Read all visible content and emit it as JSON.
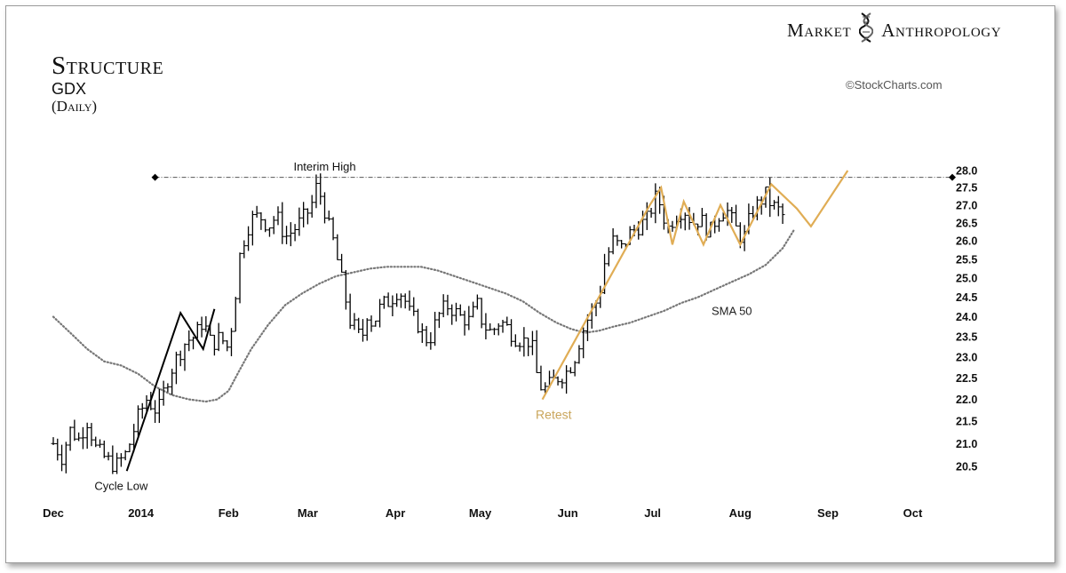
{
  "brand": {
    "left_word": "Market",
    "right_word": "Anthropology",
    "logo_icon": "dna-helix-icon"
  },
  "copyright": "©StockCharts.com",
  "chart_data": {
    "type": "bar",
    "title": "Structure",
    "symbol": "GDX",
    "period": "(Daily)",
    "y_scale": "log",
    "ylim": [
      20.1,
      28.1
    ],
    "y_ticks": [
      28.0,
      27.5,
      27.0,
      26.5,
      26.0,
      25.5,
      25.0,
      24.5,
      24.0,
      23.5,
      23.0,
      22.5,
      22.0,
      21.5,
      21.0,
      20.5
    ],
    "y_tick_labels": [
      "28.0",
      "27.5",
      "27.0",
      "26.5",
      "26.0",
      "25.5",
      "25.0",
      "24.5",
      "24.0",
      "23.5",
      "23.0",
      "22.5",
      "22.0",
      "21.5",
      "21.0",
      "20.5"
    ],
    "x_range_days": [
      0,
      318
    ],
    "x_ticks": [
      {
        "label": "Dec",
        "day": 0
      },
      {
        "label": "2014",
        "day": 31
      },
      {
        "label": "Feb",
        "day": 62
      },
      {
        "label": "Mar",
        "day": 90
      },
      {
        "label": "Apr",
        "day": 121
      },
      {
        "label": "May",
        "day": 151
      },
      {
        "label": "Jun",
        "day": 182
      },
      {
        "label": "Jul",
        "day": 212
      },
      {
        "label": "Aug",
        "day": 243
      },
      {
        "label": "Sep",
        "day": 274
      },
      {
        "label": "Oct",
        "day": 304
      }
    ],
    "close_path": [
      [
        0,
        21.0
      ],
      [
        3,
        20.7
      ],
      [
        6,
        21.3
      ],
      [
        9,
        21.1
      ],
      [
        12,
        21.5
      ],
      [
        15,
        20.9
      ],
      [
        18,
        20.7
      ],
      [
        22,
        20.5
      ],
      [
        26,
        20.8
      ],
      [
        30,
        21.6
      ],
      [
        33,
        22.0
      ],
      [
        37,
        21.7
      ],
      [
        40,
        22.4
      ],
      [
        43,
        22.9
      ],
      [
        47,
        23.4
      ],
      [
        50,
        23.5
      ],
      [
        53,
        23.9
      ],
      [
        56,
        23.3
      ],
      [
        59,
        23.5
      ],
      [
        62,
        23.2
      ],
      [
        64,
        24.3
      ],
      [
        66,
        25.6
      ],
      [
        68,
        26.2
      ],
      [
        70,
        26.6
      ],
      [
        73,
        26.7
      ],
      [
        76,
        26.4
      ],
      [
        79,
        26.7
      ],
      [
        82,
        26.1
      ],
      [
        85,
        26.3
      ],
      [
        88,
        26.6
      ],
      [
        91,
        26.9
      ],
      [
        93,
        27.5
      ],
      [
        95,
        27.2
      ],
      [
        97,
        26.5
      ],
      [
        99,
        26.0
      ],
      [
        101,
        25.3
      ],
      [
        103,
        24.6
      ],
      [
        105,
        23.9
      ],
      [
        107,
        23.7
      ],
      [
        109,
        23.4
      ],
      [
        111,
        24.1
      ],
      [
        113,
        23.8
      ],
      [
        116,
        24.3
      ],
      [
        119,
        24.4
      ],
      [
        122,
        24.7
      ],
      [
        124,
        24.5
      ],
      [
        126,
        24.1
      ],
      [
        129,
        23.8
      ],
      [
        131,
        23.5
      ],
      [
        133,
        23.4
      ],
      [
        136,
        24.0
      ],
      [
        139,
        24.3
      ],
      [
        141,
        24.2
      ],
      [
        144,
        24.0
      ],
      [
        147,
        23.9
      ],
      [
        150,
        24.3
      ],
      [
        152,
        23.8
      ],
      [
        155,
        23.6
      ],
      [
        158,
        23.9
      ],
      [
        161,
        23.7
      ],
      [
        163,
        23.5
      ],
      [
        166,
        23.4
      ],
      [
        169,
        23.4
      ],
      [
        171,
        22.6
      ],
      [
        173,
        22.2
      ],
      [
        175,
        22.3
      ],
      [
        178,
        22.5
      ],
      [
        181,
        22.6
      ],
      [
        184,
        22.9
      ],
      [
        187,
        23.6
      ],
      [
        190,
        24.1
      ],
      [
        193,
        24.5
      ],
      [
        195,
        25.4
      ],
      [
        198,
        26.0
      ],
      [
        201,
        25.8
      ],
      [
        204,
        26.2
      ],
      [
        207,
        26.4
      ],
      [
        210,
        26.6
      ],
      [
        213,
        27.2
      ],
      [
        215,
        27.0
      ],
      [
        217,
        26.3
      ],
      [
        220,
        26.7
      ],
      [
        223,
        26.9
      ],
      [
        226,
        26.5
      ],
      [
        229,
        26.6
      ],
      [
        232,
        26.2
      ],
      [
        235,
        26.7
      ],
      [
        238,
        26.9
      ],
      [
        241,
        26.4
      ],
      [
        244,
        26.0
      ],
      [
        247,
        26.8
      ],
      [
        250,
        27.1
      ],
      [
        252,
        27.3
      ],
      [
        254,
        27.0
      ],
      [
        256,
        26.9
      ],
      [
        258,
        26.7
      ]
    ],
    "sma_50": [
      [
        0,
        24.0
      ],
      [
        6,
        23.6
      ],
      [
        12,
        23.2
      ],
      [
        18,
        22.9
      ],
      [
        24,
        22.8
      ],
      [
        30,
        22.6
      ],
      [
        36,
        22.3
      ],
      [
        42,
        22.1
      ],
      [
        48,
        22.0
      ],
      [
        54,
        21.95
      ],
      [
        58,
        22.0
      ],
      [
        62,
        22.2
      ],
      [
        66,
        22.7
      ],
      [
        70,
        23.2
      ],
      [
        76,
        23.8
      ],
      [
        82,
        24.3
      ],
      [
        88,
        24.6
      ],
      [
        94,
        24.85
      ],
      [
        100,
        25.05
      ],
      [
        106,
        25.15
      ],
      [
        112,
        25.25
      ],
      [
        118,
        25.3
      ],
      [
        124,
        25.3
      ],
      [
        130,
        25.3
      ],
      [
        136,
        25.2
      ],
      [
        142,
        25.05
      ],
      [
        148,
        24.9
      ],
      [
        154,
        24.75
      ],
      [
        160,
        24.6
      ],
      [
        166,
        24.4
      ],
      [
        172,
        24.1
      ],
      [
        178,
        23.85
      ],
      [
        183,
        23.7
      ],
      [
        188,
        23.6
      ],
      [
        193,
        23.65
      ],
      [
        198,
        23.75
      ],
      [
        204,
        23.85
      ],
      [
        210,
        24.0
      ],
      [
        216,
        24.15
      ],
      [
        222,
        24.35
      ],
      [
        228,
        24.5
      ],
      [
        234,
        24.7
      ],
      [
        240,
        24.9
      ],
      [
        246,
        25.1
      ],
      [
        252,
        25.35
      ],
      [
        258,
        25.8
      ],
      [
        262,
        26.3
      ]
    ],
    "sma_label": "SMA 50",
    "interim_high_level": 27.8,
    "interim_high_span_days": [
      36,
      318
    ],
    "black_zigzag": [
      [
        26,
        20.4
      ],
      [
        45,
        24.1
      ],
      [
        53,
        23.2
      ],
      [
        57,
        24.2
      ]
    ],
    "gold_path": [
      [
        173,
        22.0
      ],
      [
        211,
        27.0
      ],
      [
        215,
        27.5
      ],
      [
        219,
        25.9
      ],
      [
        223,
        27.1
      ],
      [
        230,
        25.9
      ],
      [
        236,
        27.0
      ],
      [
        243,
        25.9
      ],
      [
        254,
        27.6
      ],
      [
        263,
        26.9
      ],
      [
        268,
        26.4
      ],
      [
        281,
        28.0
      ]
    ],
    "annotations": [
      {
        "text": "Interim High",
        "day": 96,
        "value": 28.0,
        "color": "#111111"
      },
      {
        "text": "Cycle Low",
        "day": 24,
        "value": 20.0,
        "color": "#111111"
      },
      {
        "text": "Retest",
        "day": 177,
        "value": 21.55,
        "color": "#c9a55a"
      },
      {
        "text": "SMA 50",
        "day": 240,
        "value": 24.05,
        "color": "#222222"
      }
    ],
    "colors": {
      "bars": "#000000",
      "sma": "#777777",
      "gold": "#e0ad55",
      "interim_line": "#555555"
    }
  }
}
